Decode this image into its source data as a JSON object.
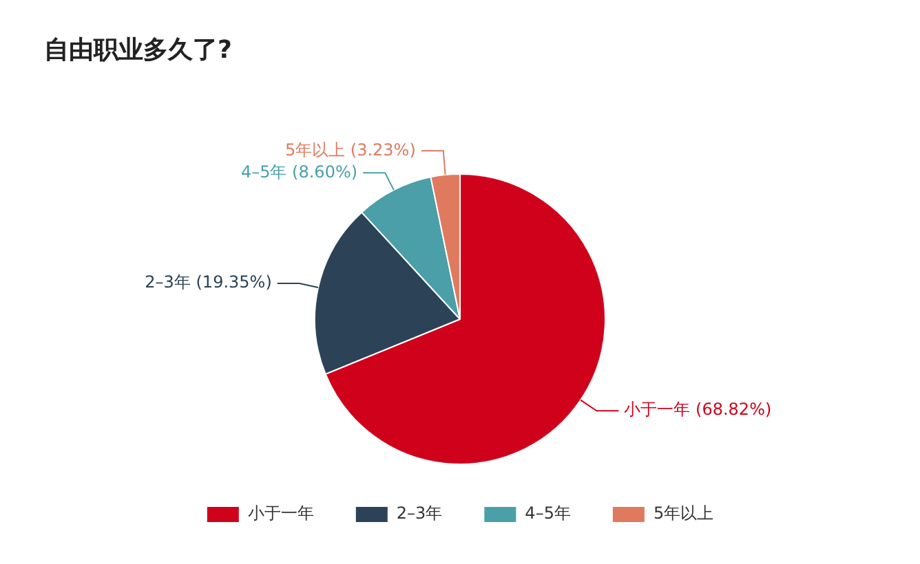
{
  "chart_data": {
    "type": "pie",
    "title": "自由职业多久了?",
    "categories": [
      "小于一年",
      "2–3年",
      "4–5年",
      "5年以上"
    ],
    "values": [
      68.82,
      19.35,
      8.6,
      3.23
    ],
    "colors": [
      "#d0021b",
      "#2c4357",
      "#4a9fa8",
      "#e07a5f"
    ],
    "value_labels": [
      "小于一年 (68.82%)",
      "2–3年 (19.35%)",
      "4–5年 (8.60%)",
      "5年以上 (3.23%)"
    ],
    "legend": "bottom"
  }
}
